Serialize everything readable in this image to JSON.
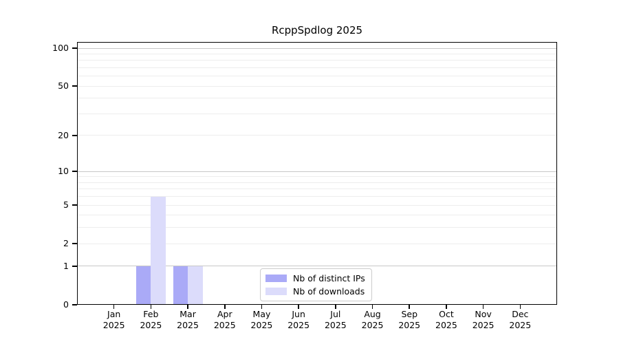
{
  "colors": {
    "distinct_ips": "#aaaaf7",
    "downloads": "#dcdcfb",
    "grid_minor": "#ededed",
    "grid_major": "#c8c8c8",
    "axis": "#000000",
    "background": "#ffffff"
  },
  "legend": {
    "items": [
      {
        "label": "Nb of distinct IPs",
        "color_key": "distinct_ips"
      },
      {
        "label": "Nb of downloads",
        "color_key": "downloads"
      }
    ]
  },
  "chart_data": {
    "type": "bar",
    "title": "RcppSpdlog 2025",
    "categories": [
      "Jan",
      "Feb",
      "Mar",
      "Apr",
      "May",
      "Jun",
      "Jul",
      "Aug",
      "Sep",
      "Oct",
      "Nov",
      "Dec"
    ],
    "year_label": "2025",
    "series": [
      {
        "name": "Nb of distinct IPs",
        "color_key": "distinct_ips",
        "values": [
          0,
          1,
          1,
          0,
          0,
          0,
          0,
          0,
          0,
          0,
          0,
          0
        ]
      },
      {
        "name": "Nb of downloads",
        "color_key": "downloads",
        "values": [
          0,
          6,
          1,
          0,
          0,
          0,
          0,
          0,
          0,
          0,
          0,
          0
        ]
      }
    ],
    "yscale": "log1p",
    "ylim": [
      0,
      100
    ],
    "yticks": [
      0,
      1,
      2,
      5,
      10,
      20,
      50,
      100
    ],
    "grid_minor_values": [
      2,
      3,
      4,
      5,
      6,
      7,
      8,
      9,
      20,
      30,
      40,
      50,
      60,
      70,
      80,
      90
    ],
    "grid_major_values": [
      1,
      10,
      100
    ],
    "legend_position": "lower center",
    "xlabel": "",
    "ylabel": "",
    "grid": true
  }
}
